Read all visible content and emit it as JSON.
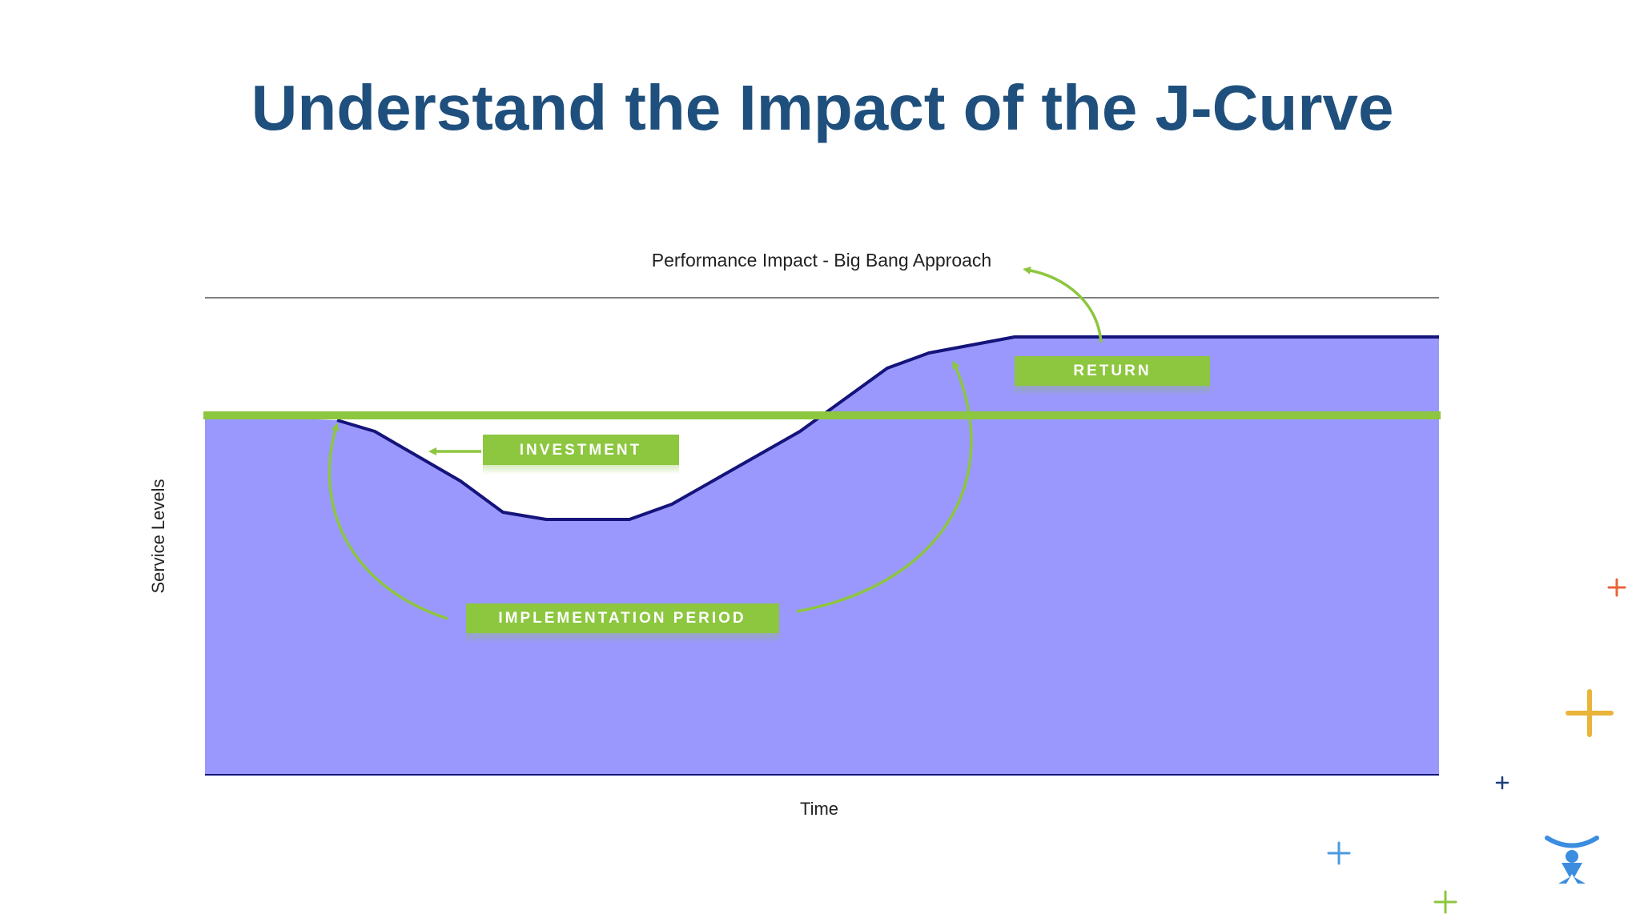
{
  "title": "Understand the Impact of the J-Curve",
  "diagram": {
    "subtitle": "Performance Impact - Big Bang Approach",
    "y_label": "Service Levels",
    "x_label": "Time",
    "labels": [
      "RETURN",
      "INVESTMENT",
      "IMPLEMENTATION PERIOD"
    ]
  }
}
